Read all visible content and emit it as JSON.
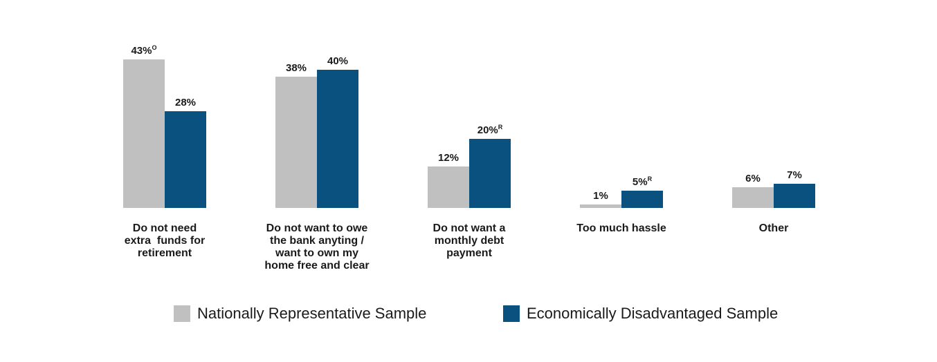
{
  "chart_data": {
    "type": "bar",
    "categories": [
      [
        "Do not need",
        "extra  funds for",
        "retirement"
      ],
      [
        "Do not want to owe",
        "the bank anyting /",
        "want to own my",
        "home free and clear"
      ],
      [
        "Do not want a",
        "monthly debt",
        "payment"
      ],
      [
        "Too much hassle"
      ],
      [
        "Other"
      ]
    ],
    "series": [
      {
        "name": "Nationally Representative Sample",
        "color": "#c0c0c0",
        "values": [
          43,
          38,
          12,
          1,
          6
        ],
        "labels": [
          "43%",
          "38%",
          "12%",
          "1%",
          "6%"
        ],
        "superscripts": [
          "O",
          "",
          "",
          "",
          ""
        ]
      },
      {
        "name": "Economically Disadvantaged Sample",
        "color": "#0b517f",
        "values": [
          28,
          40,
          20,
          5,
          7
        ],
        "labels": [
          "28%",
          "40%",
          "20%",
          "5%",
          "7%"
        ],
        "superscripts": [
          "",
          "",
          "R",
          "R",
          ""
        ]
      }
    ],
    "ylim": [
      0,
      43
    ],
    "grid": false,
    "legend_position": "bottom"
  }
}
